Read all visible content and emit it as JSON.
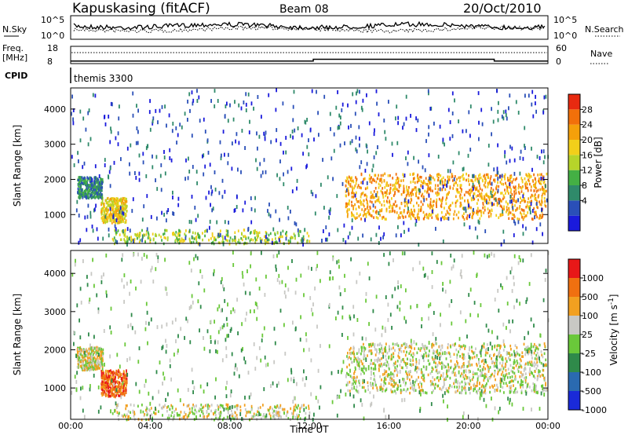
{
  "header": {
    "station": "Kapuskasing (fitACF)",
    "beam": "Beam 08",
    "date": "20/Oct/2010"
  },
  "chart_data": [
    {
      "type": "line",
      "panel": "noise",
      "left_label": "N.Sky",
      "right_label": "N.Search",
      "left_ticks": [
        "10^5",
        "10^0"
      ],
      "right_ticks": [
        "10^5",
        "10^0"
      ]
    },
    {
      "type": "line",
      "panel": "frequency",
      "left_label_top": "Freq.",
      "left_label_unit": "[MHz]",
      "right_label": "Nave",
      "left_ticks": [
        "18",
        "8"
      ],
      "right_ticks": [
        "60",
        "0"
      ],
      "freq_steps": [
        [
          0,
          9.5
        ],
        [
          12.2,
          10.5
        ],
        [
          21.3,
          9.5
        ],
        [
          24,
          9.5
        ]
      ]
    },
    {
      "type": "table",
      "panel": "cpid",
      "label": "CPID",
      "program": "themis 3300"
    },
    {
      "type": "heatmap",
      "panel": "power",
      "ylabel": "Slant Range [km]",
      "yticks": [
        1000,
        2000,
        3000,
        4000
      ],
      "ylim": [
        180,
        4600
      ],
      "xlim": [
        0,
        24
      ],
      "colorbar_label": "Power [dB]",
      "colorbar_ticks": [
        "28",
        "24",
        "20",
        "16",
        "12",
        "8",
        "4"
      ],
      "colors": [
        "#1a1adc",
        "#2a4fb8",
        "#2f8a6a",
        "#44b044",
        "#b6d42a",
        "#f2cf1a",
        "#f5a00a",
        "#f2700a",
        "#e82a10"
      ],
      "regions": [
        {
          "t": [
            13.8,
            23.9
          ],
          "r": [
            900,
            2200
          ],
          "level": 6
        },
        {
          "t": [
            1.5,
            2.8
          ],
          "r": [
            800,
            1500
          ],
          "level": 5
        },
        {
          "t": [
            0.3,
            1.6
          ],
          "r": [
            1500,
            2100
          ],
          "level": 2
        },
        {
          "t": [
            2.0,
            12.0
          ],
          "r": [
            200,
            600
          ],
          "level": 4
        },
        {
          "t": [
            0.0,
            24.0
          ],
          "r": [
            200,
            4600
          ],
          "level": 1
        }
      ]
    },
    {
      "type": "heatmap",
      "panel": "velocity",
      "ylabel": "Slant Range [km]",
      "yticks": [
        1000,
        2000,
        3000,
        4000
      ],
      "ylim": [
        180,
        4600
      ],
      "xlim": [
        0,
        24
      ],
      "xticks": [
        "00:00",
        "04:00",
        "08:00",
        "12:00",
        "16:00",
        "20:00",
        "00:00"
      ],
      "xlabel": "Time UT",
      "colorbar_label": "Velocity [m s",
      "colorbar_unit_exp": "-1",
      "colorbar_ticks": [
        "1000",
        "500",
        "100",
        "25",
        "-25",
        "-100",
        "-500",
        "-1000"
      ],
      "colors": [
        "#1a2ad8",
        "#2a6ab0",
        "#2f8a4a",
        "#6ac83a",
        "#c8c8c4",
        "#f2a020",
        "#f07010",
        "#e81818"
      ],
      "regions": [
        {
          "t": [
            13.8,
            23.9
          ],
          "r": [
            900,
            2200
          ],
          "level": 4
        },
        {
          "t": [
            1.5,
            2.8
          ],
          "r": [
            800,
            1500
          ],
          "level": 6
        },
        {
          "t": [
            0.3,
            1.6
          ],
          "r": [
            1500,
            2100
          ],
          "level": 4
        },
        {
          "t": [
            2.0,
            12.0
          ],
          "r": [
            200,
            600
          ],
          "level": 4
        },
        {
          "t": [
            0.0,
            24.0
          ],
          "r": [
            200,
            4600
          ],
          "level": 3
        }
      ]
    }
  ]
}
